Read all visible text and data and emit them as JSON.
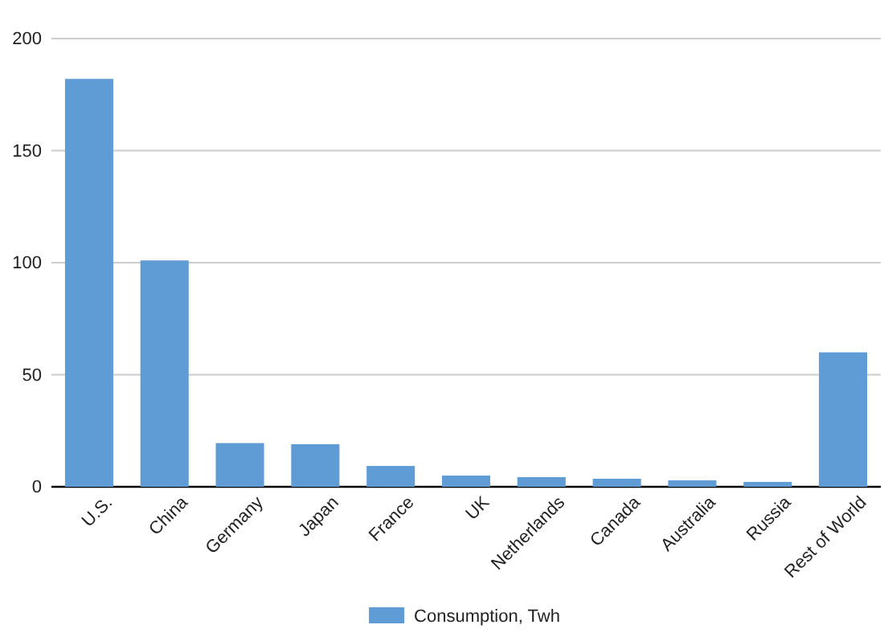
{
  "chart_data": {
    "type": "bar",
    "categories": [
      "U.S.",
      "China",
      "Germany",
      "Japan",
      "France",
      "UK",
      "Netherlands",
      "Canada",
      "Australia",
      "Russia",
      "Rest of World"
    ],
    "series": [
      {
        "name": "Consumption, Twh",
        "color": "#5f9bd4",
        "values": [
          182,
          101,
          19.5,
          19,
          9.3,
          5,
          4.3,
          3.6,
          2.9,
          2.2,
          60
        ]
      }
    ],
    "ylim": [
      0,
      200
    ],
    "yticks": [
      0,
      50,
      100,
      150,
      200
    ],
    "grid": "y",
    "legend": "bottom"
  }
}
